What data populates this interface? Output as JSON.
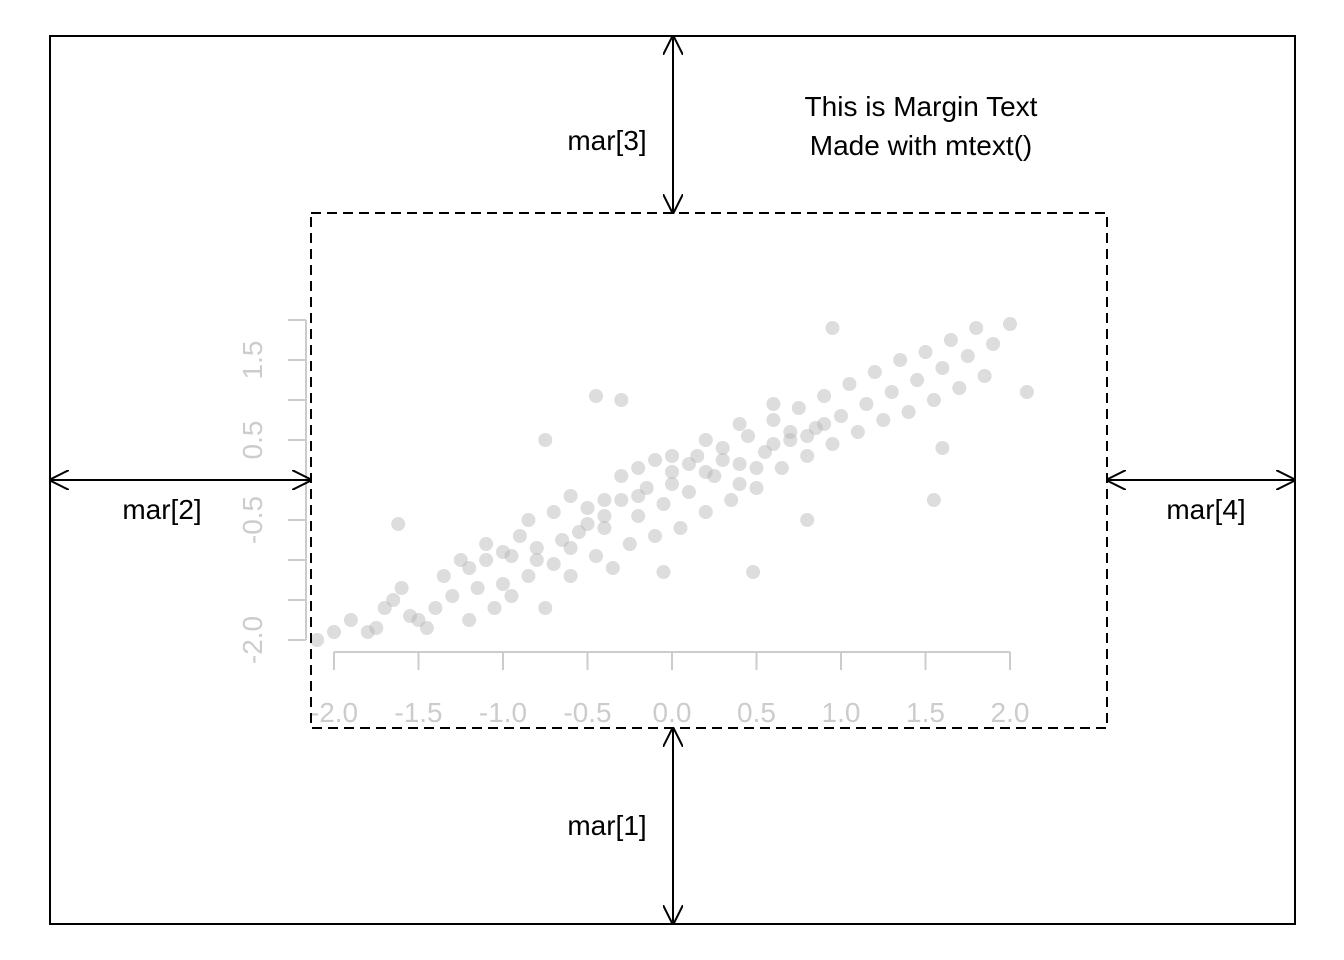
{
  "margin_text": {
    "line1": "This is Margin Text",
    "line2": "Made with mtext()"
  },
  "margin_labels": {
    "bottom": "mar[1]",
    "left": "mar[2]",
    "top": "mar[3]",
    "right": "mar[4]"
  },
  "colors": {
    "frame": "#000000",
    "axis": "#cccccc",
    "points": "#b4b4b4"
  },
  "chart_data": {
    "type": "scatter",
    "xlim": [
      -2.0,
      2.0
    ],
    "ylim": [
      -2.0,
      2.0
    ],
    "x_ticks": [
      "-2.0",
      "-1.5",
      "-1.0",
      "-0.5",
      "0.0",
      "0.5",
      "1.0",
      "1.5",
      "2.0"
    ],
    "x_tick_values": [
      -2.0,
      -1.5,
      -1.0,
      -0.5,
      0.0,
      0.5,
      1.0,
      1.5,
      2.0
    ],
    "y_tick_labels": [
      "-2.0",
      "-0.5",
      "0.5",
      "1.5"
    ],
    "y_tick_label_values": [
      -2.0,
      -0.5,
      0.5,
      1.5
    ],
    "y_tick_values": [
      -2.0,
      -1.5,
      -1.0,
      -0.5,
      0.0,
      0.5,
      1.0,
      1.5,
      2.0
    ],
    "grid": false,
    "points": [
      [
        -2.1,
        -2.0
      ],
      [
        -2.0,
        -1.9
      ],
      [
        -1.9,
        -1.75
      ],
      [
        -1.8,
        -1.9
      ],
      [
        -1.75,
        -1.85
      ],
      [
        -1.7,
        -1.6
      ],
      [
        -1.65,
        -1.5
      ],
      [
        -1.6,
        -1.35
      ],
      [
        -1.55,
        -1.7
      ],
      [
        -1.5,
        -1.75
      ],
      [
        -1.45,
        -1.85
      ],
      [
        -1.4,
        -1.6
      ],
      [
        -1.35,
        -1.2
      ],
      [
        -1.3,
        -1.45
      ],
      [
        -1.25,
        -1.0
      ],
      [
        -1.2,
        -1.75
      ],
      [
        -1.15,
        -1.35
      ],
      [
        -1.1,
        -1.0
      ],
      [
        -1.05,
        -1.6
      ],
      [
        -1.0,
        -1.3
      ],
      [
        -0.95,
        -1.45
      ],
      [
        -0.9,
        -0.7
      ],
      [
        -0.85,
        -1.2
      ],
      [
        -0.8,
        -0.85
      ],
      [
        -0.75,
        -1.6
      ],
      [
        -0.7,
        -1.05
      ],
      [
        -0.65,
        -0.75
      ],
      [
        -0.6,
        -1.2
      ],
      [
        -0.55,
        -0.65
      ],
      [
        -0.5,
        -0.35
      ],
      [
        -0.45,
        -0.95
      ],
      [
        -0.4,
        -0.6
      ],
      [
        -0.35,
        -1.1
      ],
      [
        -0.3,
        -0.25
      ],
      [
        -0.25,
        -0.8
      ],
      [
        -0.2,
        -0.45
      ],
      [
        -0.15,
        -0.1
      ],
      [
        -0.1,
        -0.7
      ],
      [
        -0.05,
        -0.3
      ],
      [
        0.0,
        0.1
      ],
      [
        0.05,
        -0.6
      ],
      [
        0.1,
        -0.15
      ],
      [
        0.15,
        0.3
      ],
      [
        0.2,
        -0.4
      ],
      [
        0.25,
        0.05
      ],
      [
        0.3,
        0.4
      ],
      [
        0.35,
        -0.25
      ],
      [
        0.4,
        0.2
      ],
      [
        0.45,
        0.55
      ],
      [
        0.5,
        -0.1
      ],
      [
        0.55,
        0.35
      ],
      [
        0.6,
        0.75
      ],
      [
        0.65,
        0.15
      ],
      [
        0.7,
        0.5
      ],
      [
        0.75,
        0.9
      ],
      [
        0.8,
        0.3
      ],
      [
        0.85,
        0.65
      ],
      [
        0.9,
        1.05
      ],
      [
        0.95,
        0.45
      ],
      [
        1.0,
        0.8
      ],
      [
        1.05,
        1.2
      ],
      [
        1.1,
        0.6
      ],
      [
        1.15,
        0.95
      ],
      [
        1.2,
        1.35
      ],
      [
        1.25,
        0.75
      ],
      [
        1.3,
        1.1
      ],
      [
        1.35,
        1.5
      ],
      [
        1.4,
        0.85
      ],
      [
        1.45,
        1.25
      ],
      [
        1.5,
        1.6
      ],
      [
        1.55,
        1.0
      ],
      [
        1.6,
        1.4
      ],
      [
        1.65,
        1.75
      ],
      [
        1.7,
        1.15
      ],
      [
        1.75,
        1.55
      ],
      [
        1.8,
        1.9
      ],
      [
        1.85,
        1.3
      ],
      [
        1.9,
        1.7
      ],
      [
        2.0,
        1.95
      ],
      [
        2.1,
        1.1
      ],
      [
        -1.62,
        -0.55
      ],
      [
        -0.75,
        0.5
      ],
      [
        -0.45,
        1.05
      ],
      [
        -0.3,
        1.0
      ],
      [
        -0.05,
        -1.15
      ],
      [
        0.48,
        -1.15
      ],
      [
        0.8,
        -0.5
      ],
      [
        1.55,
        -0.25
      ],
      [
        1.6,
        0.4
      ],
      [
        0.95,
        1.9
      ],
      [
        -1.1,
        -0.8
      ],
      [
        -0.95,
        -0.95
      ],
      [
        -0.85,
        -0.5
      ],
      [
        -0.7,
        -0.4
      ],
      [
        -0.6,
        -0.2
      ],
      [
        -0.5,
        -0.55
      ],
      [
        -0.4,
        -0.25
      ],
      [
        -0.3,
        0.05
      ],
      [
        -0.2,
        0.15
      ],
      [
        -0.1,
        0.25
      ],
      [
        0.0,
        -0.05
      ],
      [
        0.1,
        0.2
      ],
      [
        0.2,
        0.1
      ],
      [
        0.3,
        0.25
      ],
      [
        0.4,
        -0.05
      ],
      [
        0.5,
        0.15
      ],
      [
        0.6,
        0.45
      ],
      [
        0.7,
        0.6
      ],
      [
        0.8,
        0.55
      ],
      [
        0.9,
        0.7
      ],
      [
        -1.2,
        -1.1
      ],
      [
        -1.0,
        -0.9
      ],
      [
        -0.8,
        -1.0
      ],
      [
        -0.6,
        -0.85
      ],
      [
        -0.4,
        -0.45
      ],
      [
        -0.2,
        -0.2
      ],
      [
        0.0,
        0.3
      ],
      [
        0.2,
        0.5
      ],
      [
        0.4,
        0.7
      ],
      [
        0.6,
        0.95
      ]
    ]
  }
}
